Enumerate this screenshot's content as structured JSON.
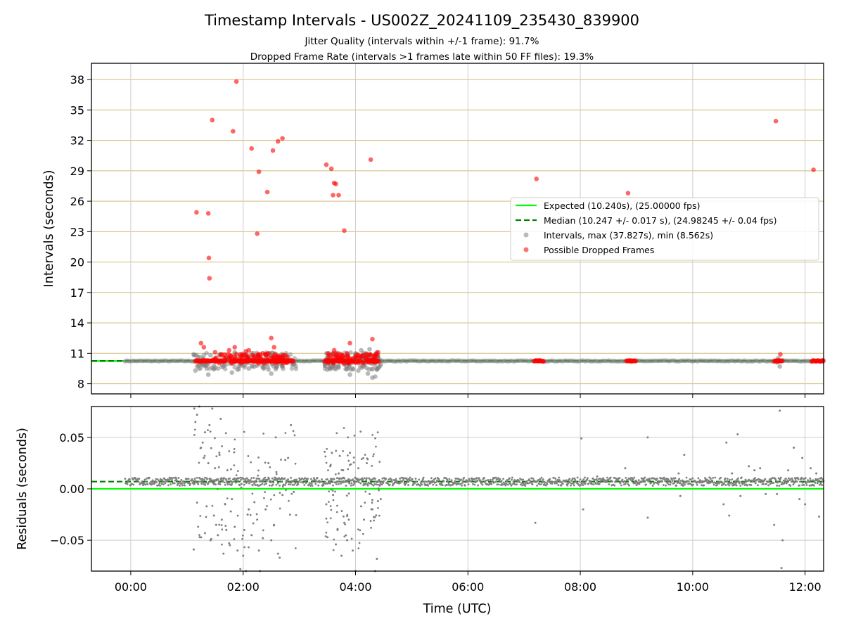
{
  "chart_data": [
    {
      "type": "scatter",
      "title": "Timestamp Intervals - US002Z_20241109_235430_839900",
      "subtitle_lines": [
        "Jitter Quality (intervals within +/-1 frame): 91.7%",
        "Dropped Frame Rate (intervals >1 frames late within 50 FF files): 19.3%"
      ],
      "xlabel": "",
      "ylabel": "Intervals (seconds)",
      "xlim_hours": [
        -0.7,
        12.33
      ],
      "ylim": [
        7.0,
        39.6
      ],
      "y_ticks": [
        8,
        11,
        14,
        17,
        20,
        23,
        26,
        29,
        32,
        35,
        38
      ],
      "y_tick_labels": [
        "8",
        "11",
        "14",
        "17",
        "20",
        "23",
        "26",
        "29",
        "32",
        "35",
        "38"
      ],
      "grid": "on",
      "horizontal_grid_color": "#d4c38a",
      "legend_position": "center-right",
      "lines": [
        {
          "name": "Expected (10.240s), (25.00000 fps)",
          "y": 10.24,
          "color": "#00ff00",
          "style": "solid"
        },
        {
          "name": "Median (10.247 +/- 0.017 s), (24.98245 +/- 0.04 fps)",
          "y": 10.247,
          "color": "#008000",
          "style": "dashed"
        }
      ],
      "series": [
        {
          "name": "Intervals, max (37.827s), min (8.562s)",
          "color": "#808080",
          "points": [
            [
              1.12,
              10.9
            ],
            [
              1.15,
              9.3
            ],
            [
              1.2,
              10.6
            ],
            [
              1.25,
              10.1
            ],
            [
              1.3,
              9.8
            ],
            [
              1.35,
              9.9
            ],
            [
              1.38,
              8.9
            ],
            [
              1.42,
              10.8
            ],
            [
              1.45,
              9.6
            ],
            [
              1.5,
              10.5
            ],
            [
              1.55,
              9.5
            ],
            [
              1.6,
              10.9
            ],
            [
              1.65,
              9.7
            ],
            [
              1.7,
              10.7
            ],
            [
              1.75,
              10.4
            ],
            [
              1.8,
              9.1
            ],
            [
              1.85,
              11.1
            ],
            [
              1.9,
              9.4
            ],
            [
              1.95,
              9.8
            ],
            [
              2.0,
              10.6
            ],
            [
              2.05,
              10.9
            ],
            [
              2.1,
              9.5
            ],
            [
              2.15,
              11.0
            ],
            [
              2.2,
              9.7
            ],
            [
              2.25,
              9.8
            ],
            [
              2.3,
              10.7
            ],
            [
              2.35,
              9.6
            ],
            [
              2.4,
              10.5
            ],
            [
              2.45,
              9.4
            ],
            [
              2.5,
              9.0
            ],
            [
              2.55,
              10.8
            ],
            [
              2.6,
              9.7
            ],
            [
              2.65,
              10.0
            ],
            [
              2.7,
              9.8
            ],
            [
              2.8,
              10.1
            ],
            [
              2.9,
              10.0
            ],
            [
              3.5,
              9.4
            ],
            [
              3.52,
              11.0
            ],
            [
              3.55,
              10.4
            ],
            [
              3.6,
              9.8
            ],
            [
              3.65,
              10.7
            ],
            [
              3.7,
              9.6
            ],
            [
              3.75,
              10.5
            ],
            [
              3.8,
              9.9
            ],
            [
              3.85,
              10.9
            ],
            [
              3.9,
              8.9
            ],
            [
              3.95,
              9.5
            ],
            [
              4.0,
              11.0
            ],
            [
              4.05,
              9.3
            ],
            [
              4.1,
              11.3
            ],
            [
              4.15,
              9.7
            ],
            [
              4.2,
              10.8
            ],
            [
              4.22,
              9.0
            ],
            [
              4.25,
              11.4
            ],
            [
              4.3,
              8.6
            ],
            [
              4.35,
              8.7
            ],
            [
              4.38,
              9.4
            ],
            [
              4.4,
              10.8
            ],
            [
              4.45,
              9.9
            ],
            [
              11.5,
              10.1
            ],
            [
              11.55,
              9.7
            ],
            [
              11.6,
              10.3
            ],
            [
              11.52,
              10.5
            ]
          ]
        },
        {
          "name": "Possible Dropped Frames",
          "color": "#ff0000",
          "points": [
            [
              1.17,
              24.9
            ],
            [
              1.38,
              24.8
            ],
            [
              1.39,
              20.4
            ],
            [
              1.4,
              18.4
            ],
            [
              1.45,
              34.0
            ],
            [
              1.82,
              32.9
            ],
            [
              1.88,
              37.8
            ],
            [
              2.15,
              31.2
            ],
            [
              2.25,
              22.8
            ],
            [
              2.28,
              28.9
            ],
            [
              2.43,
              26.9
            ],
            [
              2.53,
              31.0
            ],
            [
              2.62,
              31.9
            ],
            [
              2.7,
              32.2
            ],
            [
              3.48,
              29.6
            ],
            [
              3.57,
              29.2
            ],
            [
              3.6,
              26.6
            ],
            [
              3.62,
              27.8
            ],
            [
              3.65,
              27.7
            ],
            [
              3.7,
              26.6
            ],
            [
              3.8,
              23.1
            ],
            [
              4.27,
              30.1
            ],
            [
              7.22,
              28.2
            ],
            [
              8.85,
              26.8
            ],
            [
              11.48,
              33.9
            ],
            [
              12.15,
              29.1
            ],
            [
              1.25,
              12.0
            ],
            [
              1.3,
              11.6
            ],
            [
              1.5,
              11.1
            ],
            [
              1.6,
              10.8
            ],
            [
              1.75,
              11.3
            ],
            [
              1.85,
              11.6
            ],
            [
              1.95,
              10.9
            ],
            [
              2.05,
              11.2
            ],
            [
              2.1,
              11.3
            ],
            [
              2.2,
              10.6
            ],
            [
              2.3,
              10.9
            ],
            [
              2.35,
              11.0
            ],
            [
              2.45,
              10.6
            ],
            [
              2.5,
              12.5
            ],
            [
              2.55,
              11.6
            ],
            [
              2.65,
              10.7
            ],
            [
              2.7,
              10.5
            ],
            [
              3.55,
              10.8
            ],
            [
              3.62,
              11.3
            ],
            [
              3.7,
              10.6
            ],
            [
              3.85,
              11.0
            ],
            [
              3.9,
              12.0
            ],
            [
              3.95,
              10.5
            ],
            [
              4.05,
              10.8
            ],
            [
              4.3,
              12.4
            ],
            [
              4.35,
              10.7
            ],
            [
              4.4,
              11.1
            ],
            [
              11.56,
              10.9
            ]
          ],
          "dense_runs_hours": [
            [
              1.15,
              1.7
            ],
            [
              1.8,
              2.9
            ],
            [
              3.45,
              3.98
            ],
            [
              4.22,
              4.42
            ],
            [
              7.18,
              7.35
            ],
            [
              8.82,
              9.0
            ],
            [
              11.45,
              11.6
            ],
            [
              12.12,
              12.33
            ]
          ],
          "dense_run_value": 10.25
        }
      ]
    },
    {
      "type": "scatter",
      "title": "",
      "xlabel": "Time (UTC)",
      "ylabel": "Residuals (seconds)",
      "xlim_hours": [
        -0.7,
        12.33
      ],
      "ylim": [
        -0.08,
        0.08
      ],
      "y_ticks": [
        -0.05,
        0.0,
        0.05
      ],
      "y_tick_labels": [
        "−0.05",
        "0.00",
        "0.05"
      ],
      "x_ticks_hours": [
        0,
        2,
        4,
        6,
        8,
        10,
        12
      ],
      "x_tick_labels": [
        "00:00",
        "02:00",
        "04:00",
        "06:00",
        "08:00",
        "10:00",
        "12:00"
      ],
      "grid": "on",
      "lines": [
        {
          "y": 0.0,
          "color": "#00ff00",
          "style": "solid"
        },
        {
          "y": 0.007,
          "color": "#008000",
          "style": "dashed"
        }
      ],
      "series": [
        {
          "color": "#808080",
          "baseline": 0.007,
          "points": [
            [
              1.12,
              -0.059
            ],
            [
              1.13,
              0.078
            ],
            [
              1.15,
              0.065
            ],
            [
              1.18,
              0.072
            ],
            [
              1.22,
              0.08
            ],
            [
              1.25,
              0.04
            ],
            [
              1.28,
              0.045
            ],
            [
              1.3,
              0.03
            ],
            [
              1.32,
              0.055
            ],
            [
              1.35,
              -0.017
            ],
            [
              1.38,
              0.025
            ],
            [
              1.4,
              0.062
            ],
            [
              1.42,
              -0.05
            ],
            [
              1.45,
              0.078
            ],
            [
              1.48,
              -0.026
            ],
            [
              1.5,
              0.02
            ],
            [
              1.52,
              -0.035
            ],
            [
              1.55,
              -0.045
            ],
            [
              1.58,
              0.033
            ],
            [
              1.6,
              0.068
            ],
            [
              1.62,
              -0.03
            ],
            [
              1.65,
              -0.063
            ],
            [
              1.68,
              -0.015
            ],
            [
              1.7,
              -0.04
            ],
            [
              1.72,
              0.018
            ],
            [
              1.75,
              -0.053
            ],
            [
              1.78,
              -0.022
            ],
            [
              1.8,
              -0.01
            ],
            [
              1.85,
              -0.037
            ],
            [
              1.9,
              -0.06
            ],
            [
              1.95,
              -0.078
            ],
            [
              2.0,
              -0.065
            ],
            [
              2.02,
              -0.04
            ],
            [
              2.05,
              -0.08
            ],
            [
              2.08,
              -0.025
            ],
            [
              2.1,
              -0.02
            ],
            [
              2.15,
              -0.045
            ],
            [
              2.2,
              -0.013
            ],
            [
              2.25,
              -0.03
            ],
            [
              2.28,
              -0.06
            ],
            [
              2.3,
              -0.08
            ],
            [
              2.35,
              -0.048
            ],
            [
              2.4,
              -0.02
            ],
            [
              2.45,
              0.025
            ],
            [
              2.5,
              -0.05
            ],
            [
              2.55,
              -0.035
            ],
            [
              2.58,
              0.05
            ],
            [
              2.62,
              -0.063
            ],
            [
              2.65,
              -0.067
            ],
            [
              2.7,
              -0.006
            ],
            [
              2.75,
              0.028
            ],
            [
              2.8,
              0.03
            ],
            [
              2.85,
              0.062
            ],
            [
              2.9,
              -0.003
            ],
            [
              3.45,
              0.036
            ],
            [
              3.48,
              -0.015
            ],
            [
              3.5,
              -0.047
            ],
            [
              3.55,
              0.022
            ],
            [
              3.58,
              0.035
            ],
            [
              3.6,
              -0.006
            ],
            [
              3.65,
              -0.054
            ],
            [
              3.68,
              -0.04
            ],
            [
              3.7,
              0.015
            ],
            [
              3.72,
              0.032
            ],
            [
              3.75,
              -0.065
            ],
            [
              3.78,
              0.018
            ],
            [
              3.8,
              -0.033
            ],
            [
              3.85,
              -0.05
            ],
            [
              3.88,
              -0.03
            ],
            [
              3.9,
              0.035
            ],
            [
              3.95,
              -0.06
            ],
            [
              4.0,
              -0.08
            ],
            [
              4.05,
              0.02
            ],
            [
              4.1,
              -0.017
            ],
            [
              4.15,
              -0.03
            ],
            [
              4.2,
              0.025
            ],
            [
              4.25,
              -0.005
            ],
            [
              4.3,
              -0.02
            ],
            [
              4.35,
              -0.08
            ],
            [
              4.38,
              -0.068
            ],
            [
              4.4,
              -0.012
            ],
            [
              4.45,
              -0.01
            ],
            [
              7.2,
              -0.033
            ],
            [
              8.02,
              0.049
            ],
            [
              8.05,
              -0.02
            ],
            [
              8.3,
              0.012
            ],
            [
              8.8,
              0.02
            ],
            [
              9.2,
              0.05
            ],
            [
              9.2,
              -0.028
            ],
            [
              9.55,
              0.008
            ],
            [
              9.75,
              0.015
            ],
            [
              9.78,
              -0.007
            ],
            [
              9.85,
              0.033
            ],
            [
              10.3,
              0.011
            ],
            [
              10.55,
              -0.015
            ],
            [
              10.6,
              0.045
            ],
            [
              10.65,
              -0.026
            ],
            [
              10.7,
              0.015
            ],
            [
              10.8,
              0.053
            ],
            [
              10.85,
              -0.007
            ],
            [
              11.0,
              0.022
            ],
            [
              11.1,
              0.018
            ],
            [
              11.2,
              0.02
            ],
            [
              11.3,
              -0.005
            ],
            [
              11.45,
              -0.035
            ],
            [
              11.5,
              -0.005
            ],
            [
              11.55,
              0.076
            ],
            [
              11.58,
              -0.077
            ],
            [
              11.6,
              -0.05
            ],
            [
              11.7,
              0.018
            ],
            [
              11.8,
              0.04
            ],
            [
              11.9,
              -0.01
            ],
            [
              11.95,
              0.03
            ],
            [
              12.0,
              -0.015
            ],
            [
              12.1,
              0.02
            ],
            [
              12.2,
              0.015
            ],
            [
              12.25,
              -0.027
            ]
          ]
        }
      ]
    }
  ],
  "legend_order": [
    "Expected (10.240s), (25.00000 fps)",
    "Median (10.247 +/- 0.017 s), (24.98245 +/- 0.04 fps)",
    "Intervals, max (37.827s), min (8.562s)",
    "Possible Dropped Frames"
  ]
}
